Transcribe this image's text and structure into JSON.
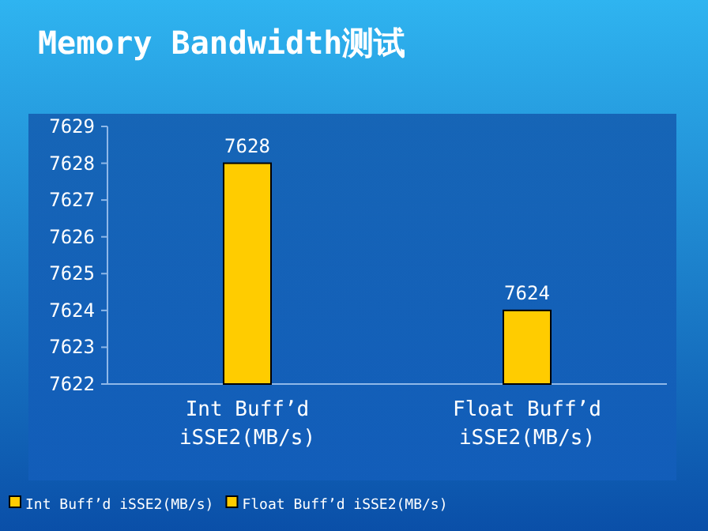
{
  "chart_data": {
    "type": "bar",
    "title": "Memory Bandwidth测试",
    "categories": [
      "Int Buff’d iSSE2(MB/s)",
      "Float Buff’d iSSE2(MB/s)"
    ],
    "series": [
      {
        "name": "Int Buff’d iSSE2(MB/s)",
        "color": "#ffcc00",
        "values": [
          7628,
          null
        ]
      },
      {
        "name": "Float Buff’d iSSE2(MB/s)",
        "color": "#ffcc00",
        "values": [
          null,
          7624
        ]
      }
    ],
    "ylim": [
      7622,
      7629
    ],
    "yticks": [
      7622,
      7623,
      7624,
      7625,
      7626,
      7627,
      7628,
      7629
    ],
    "data_labels": true,
    "legend": "bottom",
    "grid": false
  }
}
